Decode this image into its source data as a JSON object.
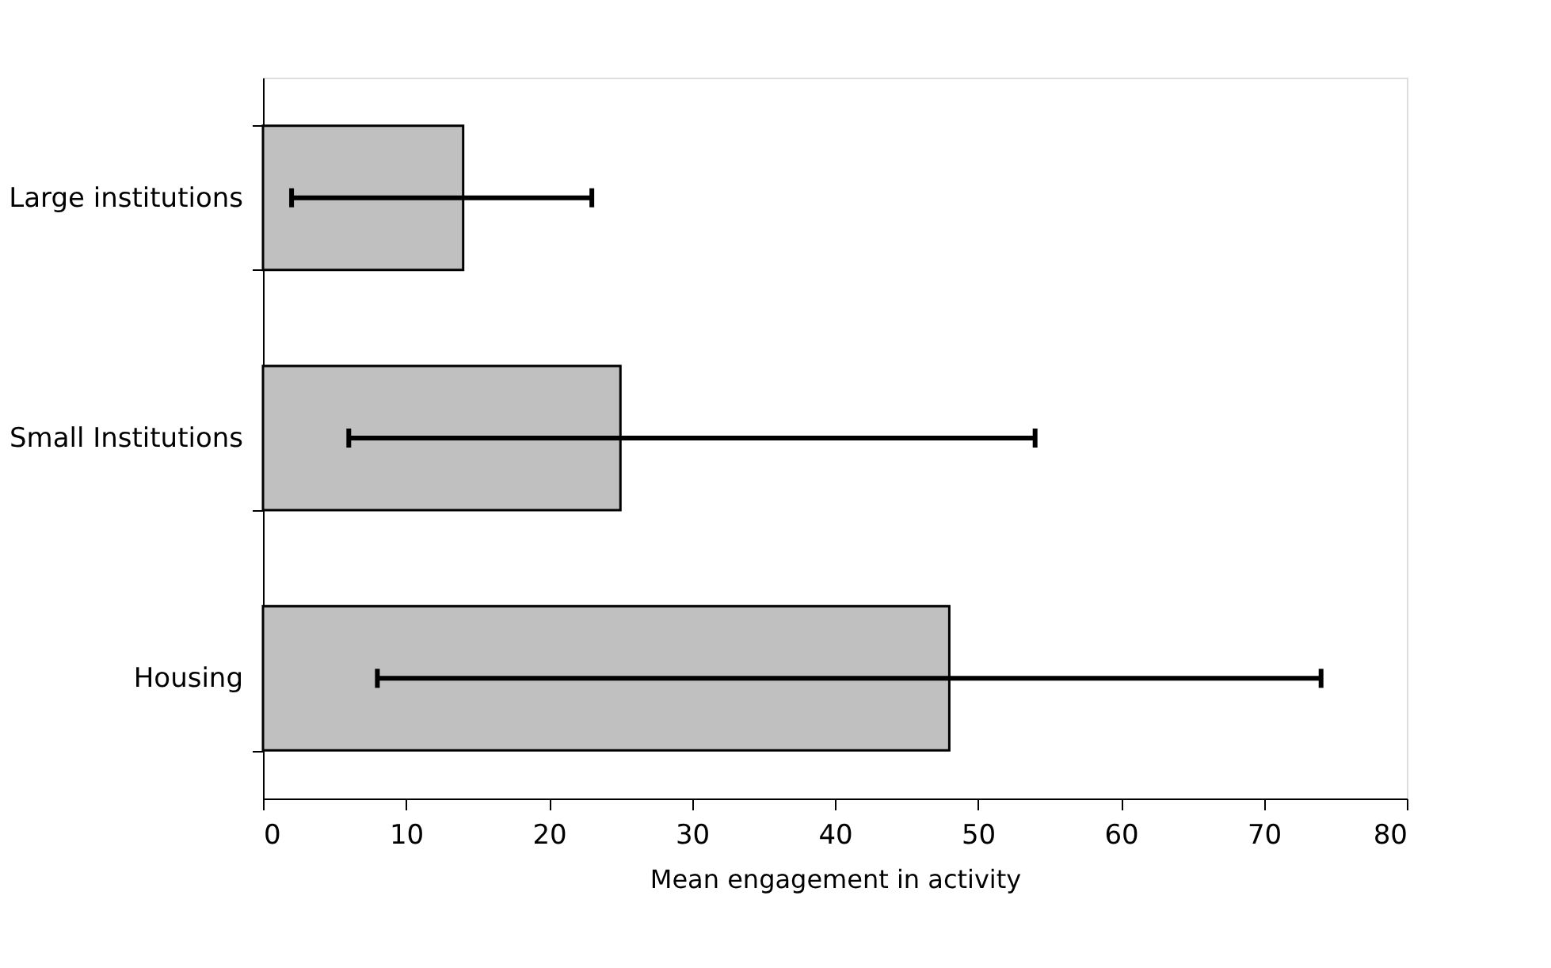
{
  "chart_data": {
    "type": "bar",
    "orientation": "horizontal",
    "xlabel": "Mean engagement in activity",
    "categories": [
      "Large institutions",
      "Small Institutions",
      "Housing"
    ],
    "values": [
      14,
      25,
      48
    ],
    "errors": [
      [
        2,
        23
      ],
      [
        6,
        54
      ],
      [
        8,
        74
      ]
    ],
    "color": "#c0c0c0",
    "xlim": [
      0,
      80
    ],
    "xticks": [
      0,
      10,
      20,
      30,
      40,
      50,
      60,
      70,
      80
    ],
    "grid": false
  }
}
